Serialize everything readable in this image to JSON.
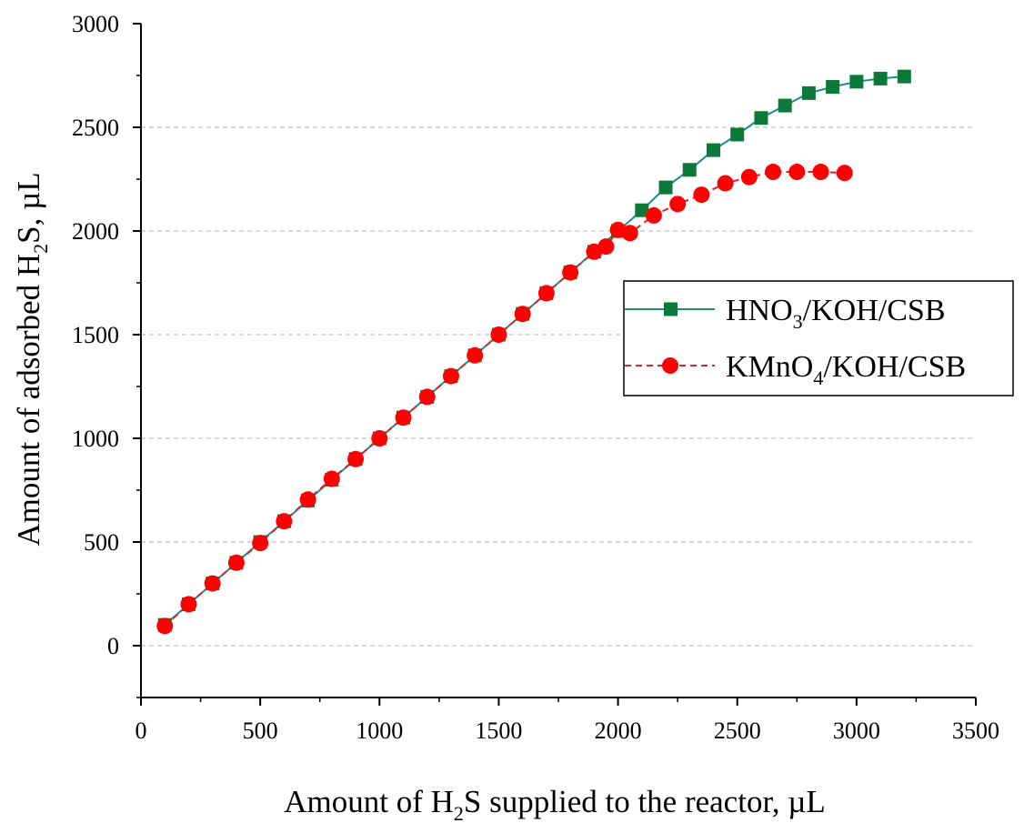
{
  "chart_data": {
    "type": "line",
    "xlabel": [
      "Amount of H",
      "2",
      "S supplied to the reactor, µL"
    ],
    "ylabel": [
      "Amount of adsorbed H",
      "2",
      "S, µL"
    ],
    "xlim": [
      0,
      3500
    ],
    "ylim": [
      -250,
      3000
    ],
    "xticks": [
      "0",
      "500",
      "1000",
      "1500",
      "2000",
      "2500",
      "3000",
      "3500"
    ],
    "yticks": [
      "0",
      "500",
      "1000",
      "1500",
      "2000",
      "2500",
      "3000"
    ],
    "grid": "horizontal dashed",
    "legend_position": "right",
    "series": [
      {
        "name": [
          "HNO",
          "3",
          "/KOH/CSB"
        ],
        "color": "#0b7a38",
        "line_color": "#1b8c8c",
        "marker": "square",
        "line_style": "solid",
        "x": [
          100,
          200,
          300,
          400,
          500,
          600,
          700,
          800,
          900,
          1000,
          1100,
          1200,
          1300,
          1400,
          1500,
          1600,
          1700,
          1800,
          1900,
          2000,
          2100,
          2200,
          2300,
          2400,
          2500,
          2600,
          2700,
          2800,
          2900,
          3000,
          3100,
          3200
        ],
        "y": [
          100,
          200,
          300,
          400,
          500,
          600,
          700,
          800,
          900,
          1000,
          1100,
          1200,
          1300,
          1400,
          1500,
          1600,
          1700,
          1800,
          1900,
          2000,
          2100,
          2210,
          2295,
          2390,
          2465,
          2545,
          2605,
          2665,
          2695,
          2720,
          2735,
          2745
        ]
      },
      {
        "name": [
          "KMnO",
          "4",
          "/KOH/CSB"
        ],
        "color": "#ff0000",
        "line_color": "#e0202a",
        "marker": "circle",
        "line_style": "dashed",
        "x": [
          100,
          200,
          300,
          400,
          500,
          600,
          700,
          800,
          900,
          1000,
          1100,
          1200,
          1300,
          1400,
          1500,
          1600,
          1700,
          1800,
          1900,
          1950,
          2000,
          2050,
          2150,
          2250,
          2350,
          2450,
          2550,
          2650,
          2750,
          2850,
          2950
        ],
        "y": [
          95,
          200,
          300,
          400,
          495,
          600,
          705,
          805,
          900,
          1000,
          1100,
          1200,
          1300,
          1400,
          1500,
          1600,
          1700,
          1800,
          1900,
          1925,
          2005,
          1990,
          2075,
          2130,
          2175,
          2230,
          2260,
          2285,
          2285,
          2285,
          2280
        ]
      }
    ]
  }
}
